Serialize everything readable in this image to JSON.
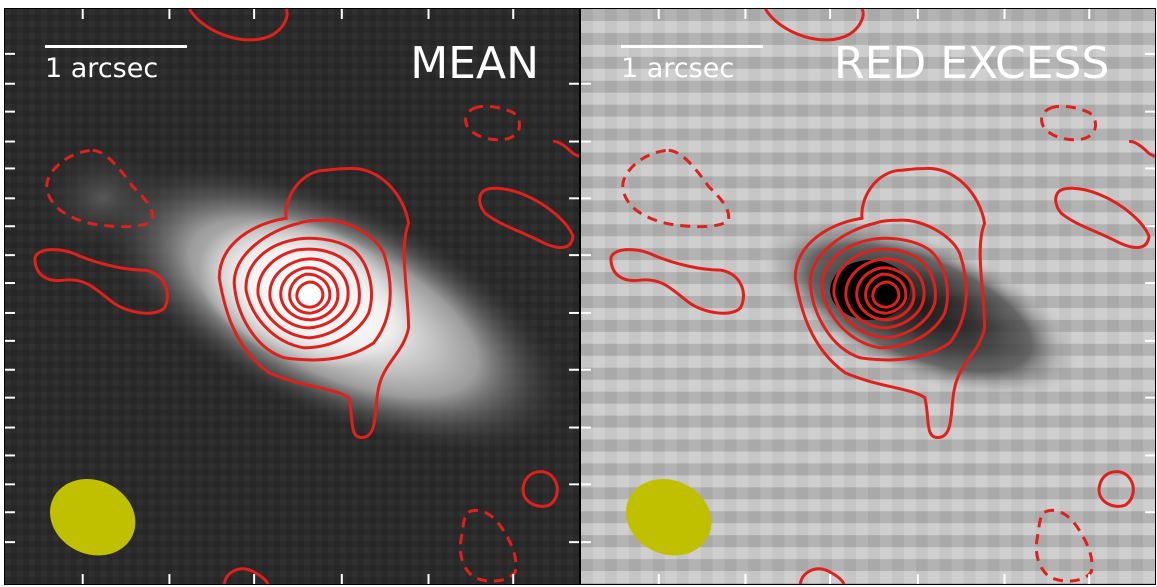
{
  "panels": [
    {
      "id": "mean",
      "title": "MEAN",
      "scale_label": "1 arcsec"
    },
    {
      "id": "red-excess",
      "title": "RED EXCESS",
      "scale_label": "1 arcsec"
    }
  ],
  "colors": {
    "contour": "#e0201b",
    "beam": "#c0c000",
    "mean_background": "#2a2a2a",
    "red_excess_background": "#bdbdbd",
    "text": "#ffffff"
  }
}
